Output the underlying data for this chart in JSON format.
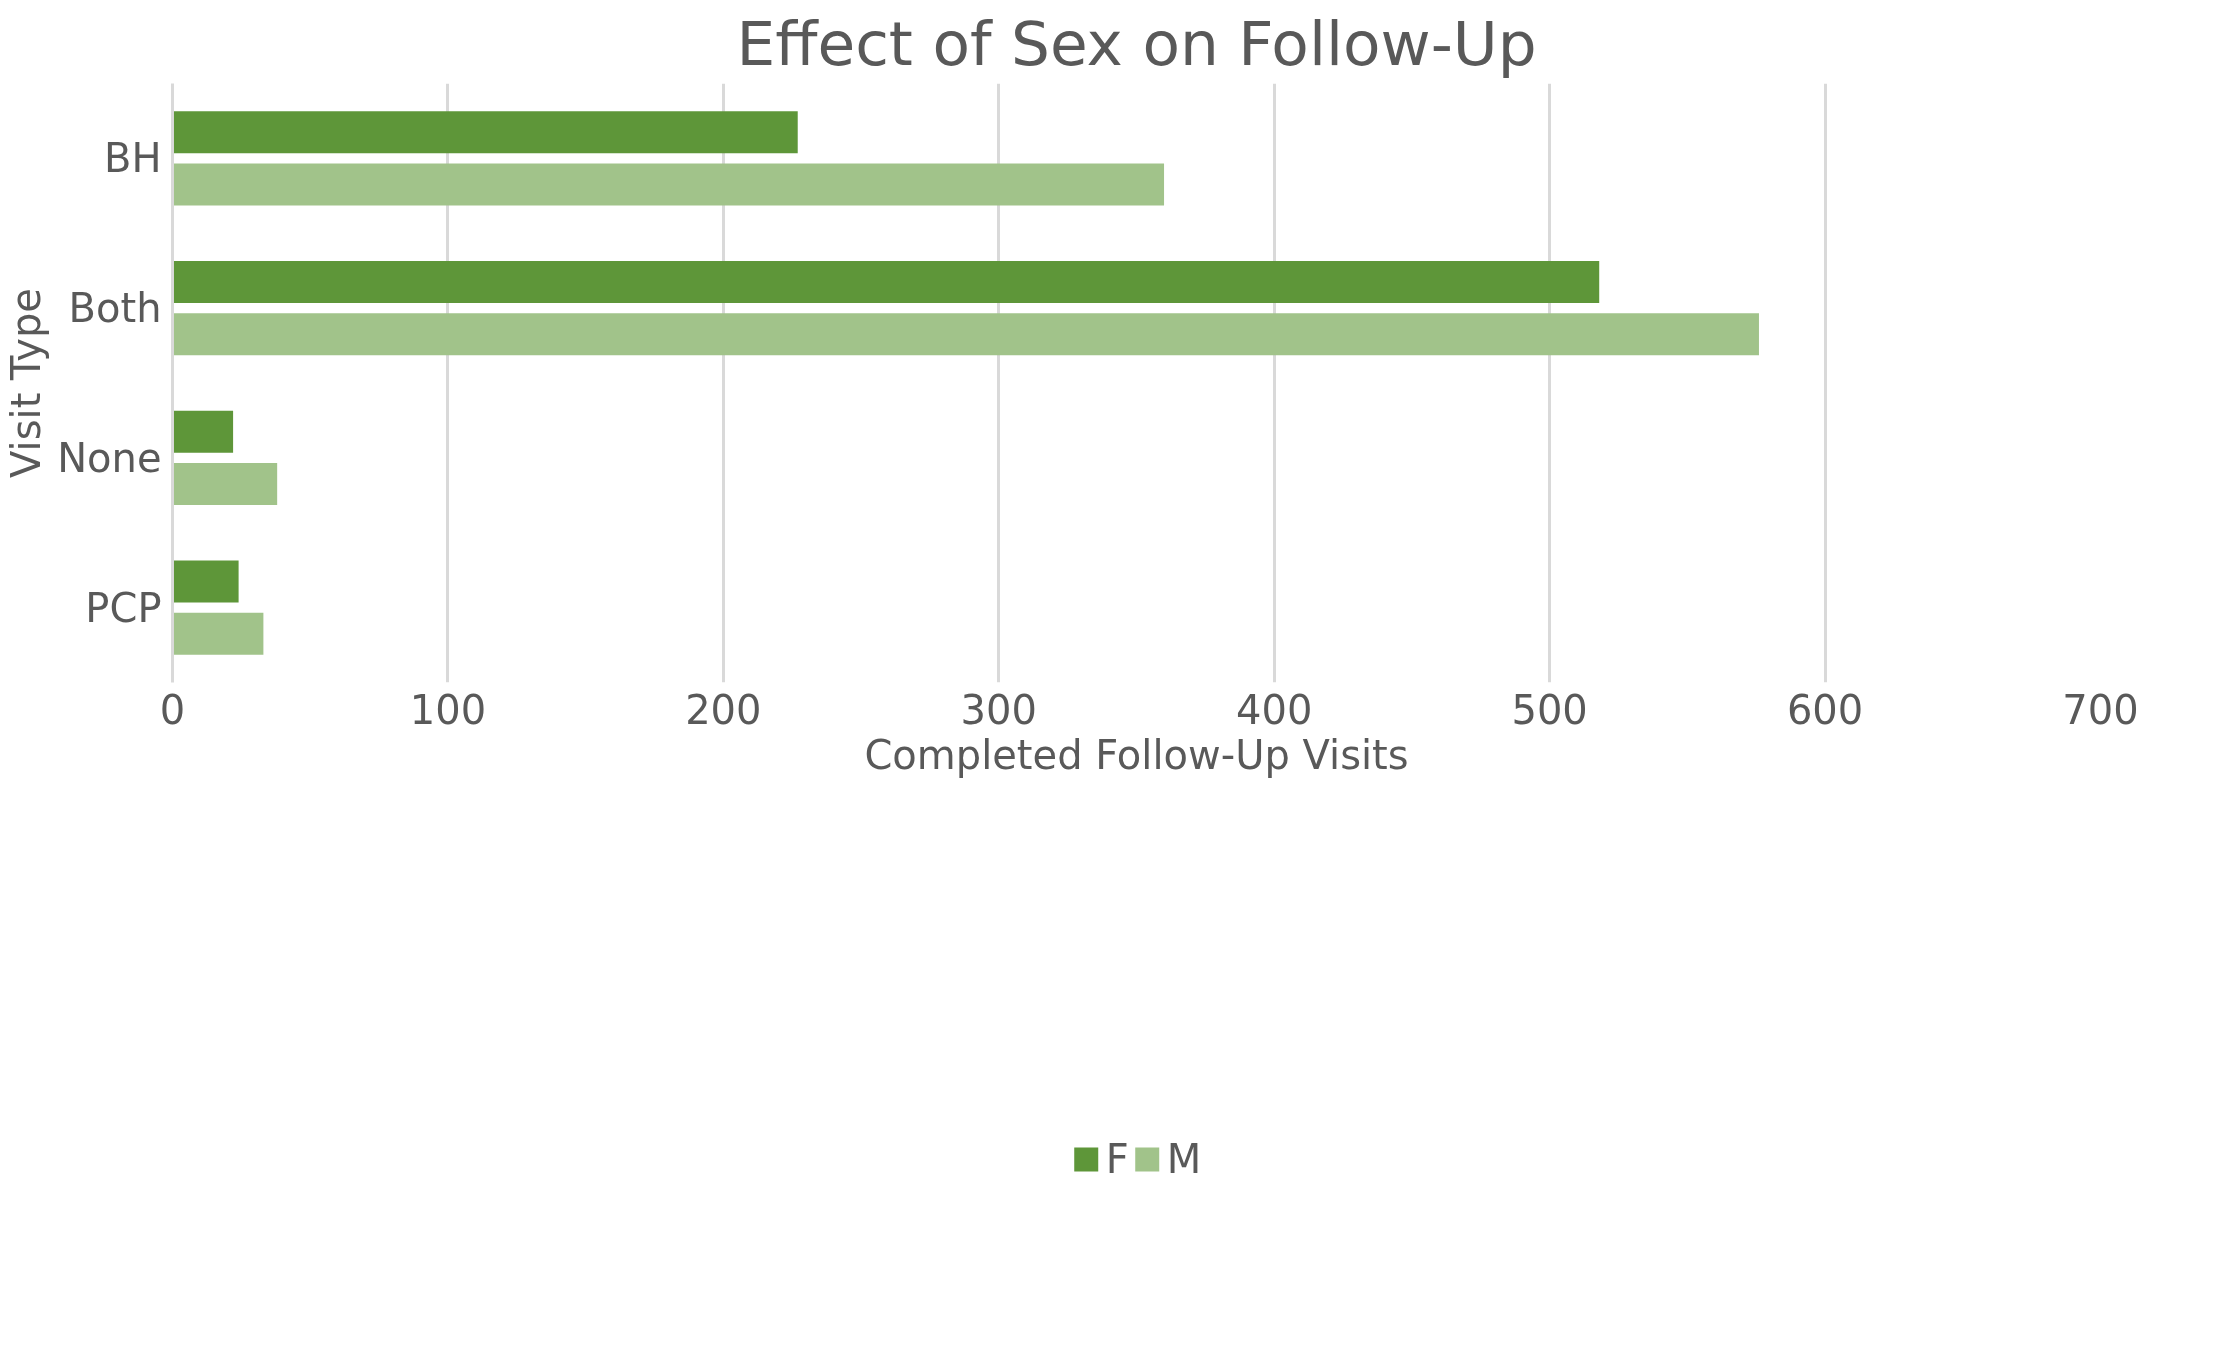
{
  "chart_data": {
    "type": "bar",
    "orientation": "horizontal",
    "title": "Effect of Sex on Follow-Up",
    "xlabel": "Completed Follow-Up Visits",
    "ylabel": "Visit Type",
    "categories": [
      "BH",
      "Both",
      "None",
      "PCP"
    ],
    "series": [
      {
        "name": "F",
        "color": "#5e9639",
        "values": [
          227,
          518,
          22,
          24
        ]
      },
      {
        "name": "M",
        "color": "#a1c38a",
        "values": [
          360,
          576,
          38,
          33
        ]
      }
    ],
    "xlim": [
      0,
      700
    ],
    "xticks": [
      0,
      100,
      200,
      300,
      400,
      500,
      600,
      700
    ],
    "grid": "x",
    "legend": "bottom"
  }
}
